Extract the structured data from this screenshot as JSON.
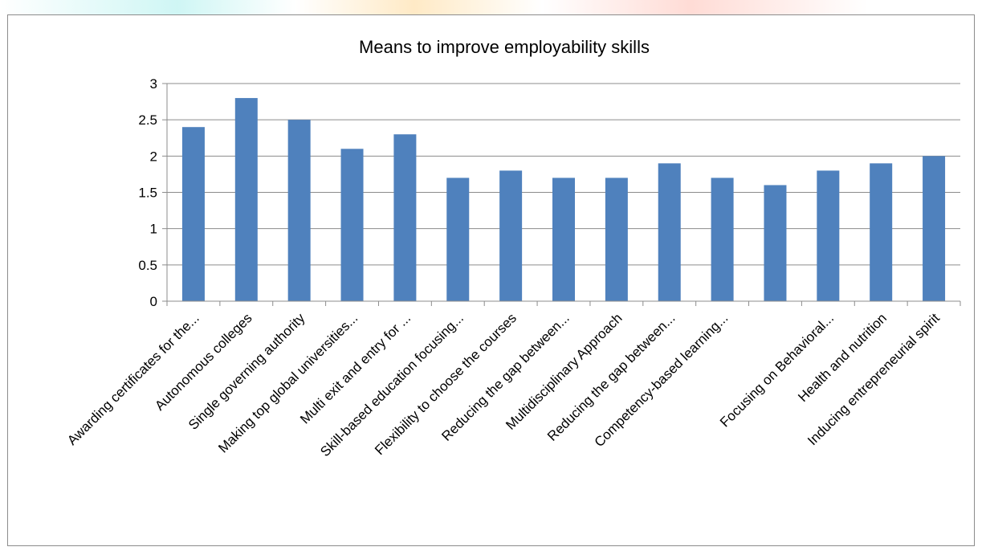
{
  "chart_data": {
    "type": "bar",
    "title": "Means to improve employability skills",
    "xlabel": "",
    "ylabel": "",
    "ylim": [
      0,
      3
    ],
    "yticks": [
      "0",
      "0.5",
      "1",
      "1.5",
      "2",
      "2.5",
      "3"
    ],
    "grid": true,
    "legend": "none",
    "bar_color": "#4f81bd",
    "categories": [
      "Awarding  certificates for the...",
      "Autonomous colleges",
      "Single governing authority",
      "Making top global universities...",
      "Multi exit and entry for ...",
      "Skill-based education focusing...",
      "Flexibility to choose the courses",
      "Reducing the gap between...",
      "Multidisciplinary Approach",
      "Reducing the gap between...",
      "Competency-based learning...",
      "",
      "Focusing on Behavioral...",
      "Health and nutrition",
      "Inducing entrepreneurial spirit"
    ],
    "values": [
      2.4,
      2.8,
      2.5,
      2.1,
      2.3,
      1.7,
      1.8,
      1.7,
      1.7,
      1.9,
      1.7,
      1.6,
      1.8,
      1.9,
      2.0
    ]
  }
}
